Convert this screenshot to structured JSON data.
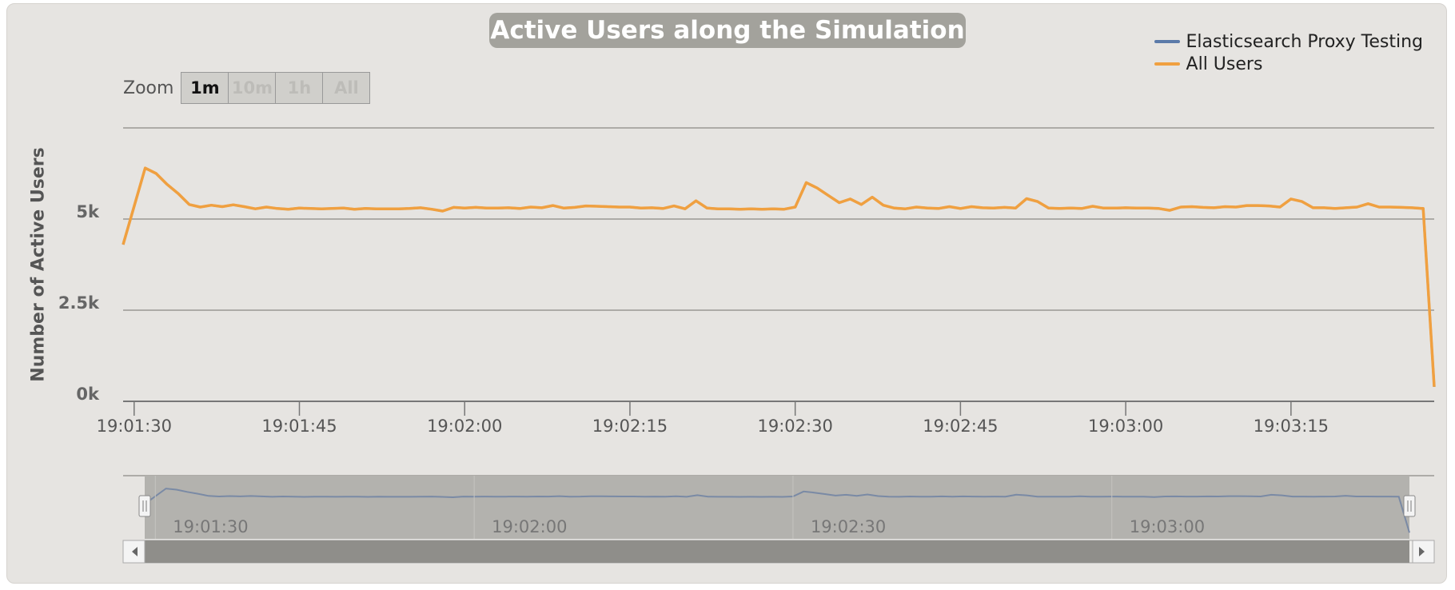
{
  "chart_data": {
    "type": "line",
    "title": "Active Users along the Simulation",
    "ylabel": "Number of Active Users",
    "xlabel": "",
    "x_start": "19:01:29",
    "x_end": "19:03:28",
    "x_tick_labels": [
      "19:01:30",
      "19:01:45",
      "19:02:00",
      "19:02:15",
      "19:02:30",
      "19:02:45",
      "19:03:00",
      "19:03:15"
    ],
    "y_tick_labels": [
      "0k",
      "2.5k",
      "5k"
    ],
    "ylim": [
      0,
      7500
    ],
    "y_ticks": [
      0,
      2500,
      5000,
      7500
    ],
    "grid": true,
    "legend_position": "top-right",
    "series": [
      {
        "name": "Elasticsearch Proxy Testing",
        "color": "#5b7aa9",
        "points": [
          [
            "19:01:29",
            4300
          ],
          [
            "19:01:31",
            6400
          ],
          [
            "19:01:32",
            6250
          ],
          [
            "19:01:33",
            5950
          ],
          [
            "19:01:34",
            5700
          ],
          [
            "19:01:35",
            5400
          ],
          [
            "19:01:36",
            5330
          ],
          [
            "19:01:37",
            5380
          ],
          [
            "19:01:38",
            5340
          ],
          [
            "19:01:39",
            5390
          ],
          [
            "19:01:40",
            5340
          ],
          [
            "19:01:41",
            5280
          ],
          [
            "19:01:42",
            5330
          ],
          [
            "19:01:43",
            5290
          ],
          [
            "19:01:44",
            5270
          ],
          [
            "19:01:45",
            5300
          ],
          [
            "19:01:46",
            5290
          ],
          [
            "19:01:47",
            5280
          ],
          [
            "19:01:48",
            5290
          ],
          [
            "19:01:49",
            5300
          ],
          [
            "19:01:50",
            5270
          ],
          [
            "19:01:51",
            5290
          ],
          [
            "19:01:52",
            5280
          ],
          [
            "19:01:53",
            5280
          ],
          [
            "19:01:54",
            5280
          ],
          [
            "19:01:55",
            5290
          ],
          [
            "19:01:56",
            5310
          ],
          [
            "19:01:57",
            5270
          ],
          [
            "19:01:58",
            5220
          ],
          [
            "19:01:59",
            5320
          ],
          [
            "19:02:00",
            5300
          ],
          [
            "19:02:01",
            5320
          ],
          [
            "19:02:02",
            5300
          ],
          [
            "19:02:03",
            5300
          ],
          [
            "19:02:04",
            5310
          ],
          [
            "19:02:05",
            5290
          ],
          [
            "19:02:06",
            5330
          ],
          [
            "19:02:07",
            5310
          ],
          [
            "19:02:08",
            5370
          ],
          [
            "19:02:09",
            5300
          ],
          [
            "19:02:10",
            5320
          ],
          [
            "19:02:11",
            5360
          ],
          [
            "19:02:12",
            5350
          ],
          [
            "19:02:13",
            5340
          ],
          [
            "19:02:14",
            5330
          ],
          [
            "19:02:15",
            5330
          ],
          [
            "19:02:16",
            5300
          ],
          [
            "19:02:17",
            5310
          ],
          [
            "19:02:18",
            5290
          ],
          [
            "19:02:19",
            5360
          ],
          [
            "19:02:20",
            5280
          ],
          [
            "19:02:21",
            5500
          ],
          [
            "19:02:22",
            5300
          ],
          [
            "19:02:23",
            5280
          ],
          [
            "19:02:24",
            5280
          ],
          [
            "19:02:25",
            5270
          ],
          [
            "19:02:26",
            5280
          ],
          [
            "19:02:27",
            5270
          ],
          [
            "19:02:28",
            5280
          ],
          [
            "19:02:29",
            5270
          ],
          [
            "19:02:30",
            5330
          ],
          [
            "19:02:31",
            6000
          ],
          [
            "19:02:32",
            5850
          ],
          [
            "19:02:33",
            5650
          ],
          [
            "19:02:34",
            5450
          ],
          [
            "19:02:35",
            5550
          ],
          [
            "19:02:36",
            5400
          ],
          [
            "19:02:37",
            5600
          ],
          [
            "19:02:38",
            5380
          ],
          [
            "19:02:39",
            5300
          ],
          [
            "19:02:40",
            5280
          ],
          [
            "19:02:41",
            5330
          ],
          [
            "19:02:42",
            5300
          ],
          [
            "19:02:43",
            5290
          ],
          [
            "19:02:44",
            5340
          ],
          [
            "19:02:45",
            5290
          ],
          [
            "19:02:46",
            5340
          ],
          [
            "19:02:47",
            5310
          ],
          [
            "19:02:48",
            5300
          ],
          [
            "19:02:49",
            5320
          ],
          [
            "19:02:50",
            5300
          ],
          [
            "19:02:51",
            5560
          ],
          [
            "19:02:52",
            5480
          ],
          [
            "19:02:53",
            5300
          ],
          [
            "19:02:54",
            5290
          ],
          [
            "19:02:55",
            5300
          ],
          [
            "19:02:56",
            5290
          ],
          [
            "19:02:57",
            5350
          ],
          [
            "19:02:58",
            5300
          ],
          [
            "19:02:59",
            5300
          ],
          [
            "19:03:00",
            5310
          ],
          [
            "19:03:01",
            5300
          ],
          [
            "19:03:02",
            5300
          ],
          [
            "19:03:03",
            5290
          ],
          [
            "19:03:04",
            5240
          ],
          [
            "19:03:05",
            5330
          ],
          [
            "19:03:06",
            5340
          ],
          [
            "19:03:07",
            5320
          ],
          [
            "19:03:08",
            5310
          ],
          [
            "19:03:09",
            5340
          ],
          [
            "19:03:10",
            5330
          ],
          [
            "19:03:11",
            5370
          ],
          [
            "19:03:12",
            5370
          ],
          [
            "19:03:13",
            5360
          ],
          [
            "19:03:14",
            5330
          ],
          [
            "19:03:15",
            5550
          ],
          [
            "19:03:16",
            5480
          ],
          [
            "19:03:17",
            5310
          ],
          [
            "19:03:18",
            5310
          ],
          [
            "19:03:19",
            5290
          ],
          [
            "19:03:20",
            5310
          ],
          [
            "19:03:21",
            5330
          ],
          [
            "19:03:22",
            5420
          ],
          [
            "19:03:23",
            5330
          ],
          [
            "19:03:24",
            5330
          ],
          [
            "19:03:25",
            5320
          ],
          [
            "19:03:26",
            5310
          ],
          [
            "19:03:27",
            5290
          ],
          [
            "19:03:28",
            400
          ]
        ]
      },
      {
        "name": "All Users",
        "color": "#f0a040",
        "same_values_as": "Elasticsearch Proxy Testing"
      }
    ],
    "navigator": {
      "x_tick_labels": [
        "19:01:30",
        "19:02:00",
        "19:02:30",
        "19:03:00"
      ]
    },
    "zoom": {
      "label": "Zoom",
      "buttons": [
        "1m",
        "10m",
        "1h",
        "All"
      ],
      "selected": "1m"
    }
  }
}
